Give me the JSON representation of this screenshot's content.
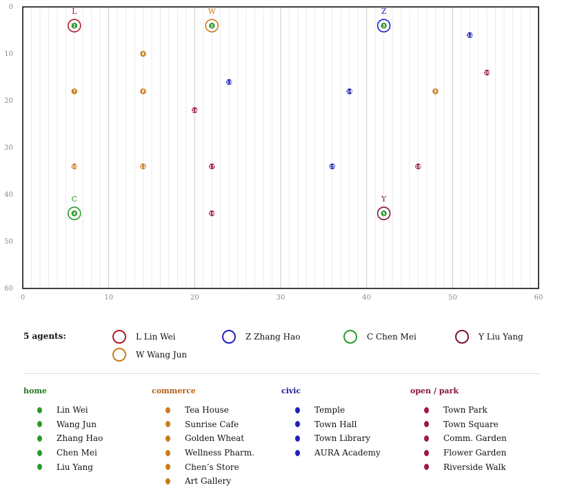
{
  "chart_data": {
    "type": "scatter",
    "xlim": [
      0,
      60
    ],
    "ylim": [
      0,
      60
    ],
    "x_ticks": [
      "0",
      "10",
      "20",
      "30",
      "40",
      "50",
      "60"
    ],
    "y_ticks": [
      "0",
      "10",
      "20",
      "30",
      "40",
      "50",
      "60"
    ],
    "grid": "vertical minor lines every 1 unit, major every 10",
    "agents": [
      {
        "letter": "L",
        "name": "Lin Wei",
        "x": 6,
        "y": 4,
        "color": "#b2182b",
        "home": 1
      },
      {
        "letter": "W",
        "name": "Wang Jun",
        "x": 22,
        "y": 4,
        "color": "#cc7a1a",
        "home": 2
      },
      {
        "letter": "Z",
        "name": "Zhang Hao",
        "x": 42,
        "y": 4,
        "color": "#1f1fbf",
        "home": 3
      },
      {
        "letter": "C",
        "name": "Chen Mei",
        "x": 6,
        "y": 44,
        "color": "#2a9a2a",
        "home": 4
      },
      {
        "letter": "Y",
        "name": "Liu Yang",
        "x": 42,
        "y": 44,
        "color": "#7a1040",
        "home": 5
      }
    ],
    "places": [
      {
        "num": 1,
        "x": 6,
        "y": 4,
        "cat": "home"
      },
      {
        "num": 2,
        "x": 22,
        "y": 4,
        "cat": "home"
      },
      {
        "num": 3,
        "x": 42,
        "y": 4,
        "cat": "home"
      },
      {
        "num": 4,
        "x": 6,
        "y": 44,
        "cat": "home"
      },
      {
        "num": 5,
        "x": 42,
        "y": 44,
        "cat": "home"
      },
      {
        "num": 6,
        "x": 14,
        "y": 10,
        "cat": "commerce"
      },
      {
        "num": 7,
        "x": 6,
        "y": 18,
        "cat": "commerce"
      },
      {
        "num": 8,
        "x": 14,
        "y": 18,
        "cat": "commerce"
      },
      {
        "num": 9,
        "x": 48,
        "y": 18,
        "cat": "commerce"
      },
      {
        "num": 10,
        "x": 6,
        "y": 34,
        "cat": "commerce"
      },
      {
        "num": 11,
        "x": 14,
        "y": 34,
        "cat": "commerce"
      },
      {
        "num": 12,
        "x": 52,
        "y": 6,
        "cat": "civic"
      },
      {
        "num": 13,
        "x": 24,
        "y": 16,
        "cat": "civic"
      },
      {
        "num": 14,
        "x": 38,
        "y": 18,
        "cat": "civic"
      },
      {
        "num": 15,
        "x": 36,
        "y": 34,
        "cat": "civic"
      },
      {
        "num": 16,
        "x": 20,
        "y": 22,
        "cat": "park"
      },
      {
        "num": 17,
        "x": 22,
        "y": 34,
        "cat": "park"
      },
      {
        "num": 18,
        "x": 46,
        "y": 34,
        "cat": "park"
      },
      {
        "num": 19,
        "x": 22,
        "y": 44,
        "cat": "park"
      },
      {
        "num": 20,
        "x": 54,
        "y": 14,
        "cat": "park"
      }
    ],
    "category_colors": {
      "home": "#2a9a2a",
      "commerce": "#cc7a1a",
      "civic": "#1f1fbf",
      "park": "#a0174a"
    }
  },
  "legend": {
    "agents_label": "5 agents:",
    "agents": [
      {
        "label": "L Lin Wei",
        "color": "#b2182b"
      },
      {
        "label": "Z Zhang Hao",
        "color": "#1f1fbf"
      },
      {
        "label": "C Chen Mei",
        "color": "#2a9a2a"
      },
      {
        "label": "Y Liu Yang",
        "color": "#7a1040"
      },
      {
        "label": "W Wang Jun",
        "color": "#cc7a1a"
      }
    ]
  },
  "categories": [
    {
      "title": "home",
      "color": "#1e7a1e",
      "dot_color": "#2a9a2a",
      "items": [
        "Lin Wei",
        "Wang Jun",
        "Zhang Hao",
        "Chen Mei",
        "Liu Yang"
      ]
    },
    {
      "title": "commerce",
      "color": "#b35f14",
      "dot_color": "#cc7a1a",
      "items": [
        "Tea House",
        "Sunrise Cafe",
        "Golden Wheat",
        "Wellness Pharm.",
        "Chen’s Store",
        "Art Gallery"
      ]
    },
    {
      "title": "civic",
      "color": "#1a1a9a",
      "dot_color": "#1f1fbf",
      "items": [
        "Temple",
        "Town Hall",
        "Town Library",
        "AURA Academy"
      ]
    },
    {
      "title": "open / park",
      "color": "#8a1040",
      "dot_color": "#a0174a",
      "items": [
        "Town Park",
        "Town Square",
        "Comm. Garden",
        "Flower Garden",
        "Riverside Walk"
      ]
    }
  ]
}
